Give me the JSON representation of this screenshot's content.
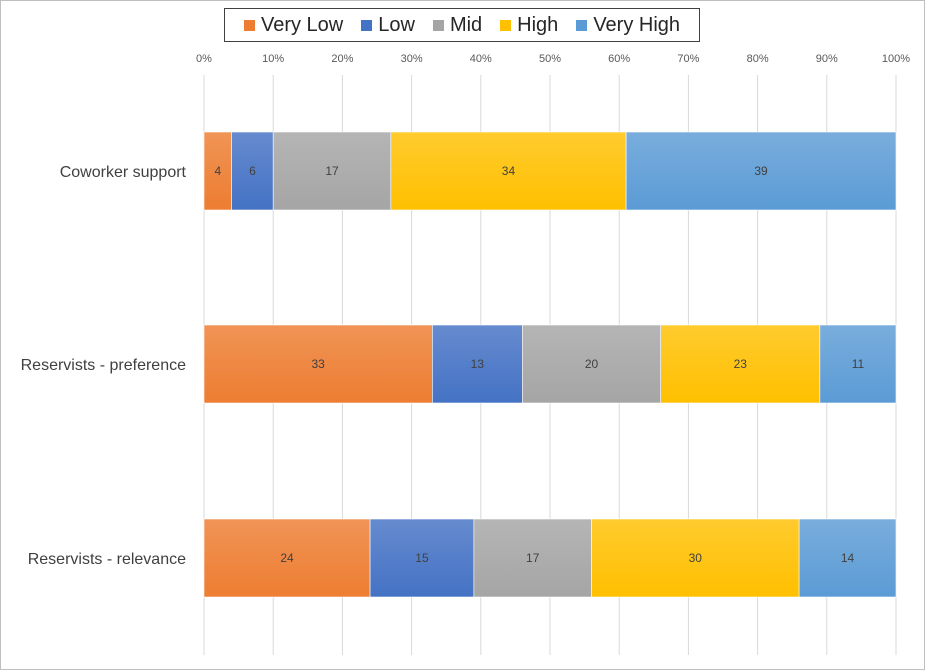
{
  "chart_data": {
    "type": "bar",
    "orientation": "horizontal",
    "stacked": "percent",
    "categories": [
      "Coworker support",
      "Reservists - preference",
      "Reservists - relevance"
    ],
    "series": [
      {
        "name": "Very Low",
        "color": "#ed7d31",
        "values": [
          4,
          33,
          24
        ]
      },
      {
        "name": "Low",
        "color": "#4472c4",
        "values": [
          6,
          13,
          15
        ]
      },
      {
        "name": "Mid",
        "color": "#a5a5a5",
        "values": [
          17,
          20,
          17
        ]
      },
      {
        "name": "High",
        "color": "#ffc000",
        "values": [
          34,
          23,
          30
        ]
      },
      {
        "name": "Very High",
        "color": "#5b9bd5",
        "values": [
          39,
          11,
          14
        ]
      }
    ],
    "xticks": [
      "0%",
      "10%",
      "20%",
      "30%",
      "40%",
      "50%",
      "60%",
      "70%",
      "80%",
      "90%",
      "100%"
    ],
    "xlim": [
      0,
      100
    ],
    "grid": true,
    "legend_position": "top"
  }
}
